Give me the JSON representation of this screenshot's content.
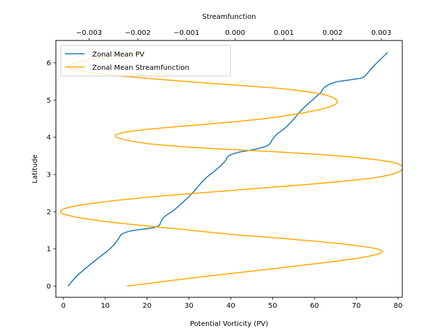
{
  "chart_data": {
    "type": "line",
    "title": "",
    "xlabel": "Potential Vorticity (PV)",
    "ylabel": "Latitude",
    "x2label": "Streamfunction",
    "xlim": [
      -1.8,
      81
    ],
    "x2lim": [
      -0.00368,
      0.00343
    ],
    "ylim": [
      -0.3,
      6.6
    ],
    "xticks": [
      0,
      10,
      20,
      30,
      40,
      50,
      60,
      70,
      80
    ],
    "x2ticks": [
      -0.003,
      -0.002,
      -0.001,
      0.0,
      0.001,
      0.002,
      0.003
    ],
    "x2tick_labels": [
      "−0.003",
      "−0.002",
      "−0.001",
      "0.000",
      "0.001",
      "0.002",
      "0.003"
    ],
    "yticks": [
      0,
      1,
      2,
      3,
      4,
      5,
      6
    ],
    "grid": false,
    "legend": {
      "position": "top-left"
    },
    "series": [
      {
        "name": "Zonal Mean PV",
        "axis": "bottom",
        "color": "#1f77b4",
        "x": [
          1.1,
          3.0,
          5.0,
          7.5,
          10.0,
          12.0,
          13.3,
          14.0,
          16.0,
          19.0,
          21.5,
          22.8,
          23.3,
          24.0,
          26.5,
          29.0,
          31.0,
          32.5,
          34.0,
          36.0,
          38.0,
          38.8,
          39.5,
          42.0,
          45.5,
          48.5,
          49.5,
          50.0,
          51.0,
          53.0,
          55.0,
          56.5,
          58.0,
          60.0,
          61.5,
          62.5,
          65.0,
          69.0,
          71.5,
          72.5,
          74.5,
          77.5
        ],
        "y": [
          0.0,
          0.25,
          0.45,
          0.68,
          0.9,
          1.1,
          1.3,
          1.4,
          1.48,
          1.53,
          1.57,
          1.62,
          1.72,
          1.85,
          2.05,
          2.3,
          2.52,
          2.72,
          2.9,
          3.08,
          3.28,
          3.38,
          3.5,
          3.6,
          3.67,
          3.76,
          3.85,
          3.95,
          4.08,
          4.25,
          4.48,
          4.68,
          4.85,
          5.05,
          5.2,
          5.35,
          5.48,
          5.55,
          5.6,
          5.7,
          5.95,
          6.28
        ]
      },
      {
        "name": "Zonal Mean Streamfunction",
        "axis": "top",
        "color": "#ffa500",
        "x": [
          -0.00222,
          -0.00192,
          -0.0015,
          -0.00088,
          -0.00015,
          0.00065,
          0.00143,
          0.00213,
          0.00265,
          0.003,
          0.00291,
          0.00242,
          0.0017,
          0.0008,
          -0.00015,
          -0.00105,
          -0.0019,
          -0.00268,
          -0.00324,
          -0.00356,
          -0.00351,
          -0.00306,
          -0.00238,
          -0.00153,
          -0.00058,
          0.0004,
          0.00137,
          0.00223,
          0.0029,
          0.00332,
          0.00344,
          0.00322,
          0.00268,
          0.0019,
          0.00095,
          -5e-05,
          -0.001,
          -0.0018,
          -0.00232,
          -0.00246,
          -0.0022,
          -0.0015,
          -0.0005,
          0.0006,
          0.0015,
          0.002,
          0.00208,
          0.0018,
          0.001,
          -0.0002,
          -0.0015,
          -0.0026,
          -0.00325,
          -0.0034,
          -0.0029,
          -0.002
        ],
        "y": [
          0.0,
          0.05,
          0.12,
          0.22,
          0.33,
          0.45,
          0.57,
          0.68,
          0.78,
          0.9,
          1.0,
          1.1,
          1.2,
          1.3,
          1.4,
          1.52,
          1.63,
          1.74,
          1.85,
          1.96,
          2.08,
          2.2,
          2.31,
          2.42,
          2.52,
          2.62,
          2.72,
          2.82,
          2.92,
          3.05,
          3.2,
          3.33,
          3.43,
          3.52,
          3.6,
          3.67,
          3.74,
          3.83,
          3.95,
          4.05,
          4.15,
          4.25,
          4.36,
          4.5,
          4.68,
          4.85,
          5.0,
          5.15,
          5.3,
          5.42,
          5.55,
          5.68,
          5.8,
          5.95,
          6.1,
          6.25
        ]
      }
    ]
  }
}
